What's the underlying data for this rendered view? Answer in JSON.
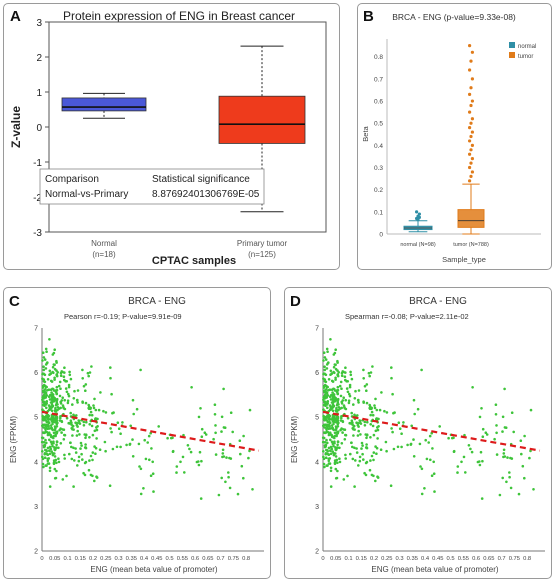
{
  "panels": {
    "A": "A",
    "B": "B",
    "C": "C",
    "D": "D"
  },
  "chart_data": [
    {
      "type": "box",
      "title": "Protein expression of ENG in Breast cancer",
      "xlabel": "CPTAC samples",
      "ylabel": "Z-value",
      "ylim": [
        -3,
        3
      ],
      "yticks": [
        "-3",
        "-2",
        "-1",
        "0",
        "1",
        "2",
        "3"
      ],
      "categories": [
        {
          "name": "Normal",
          "n": "(n=18)",
          "color": "#4a58d8",
          "whisker_low": 0.25,
          "q1": 0.46,
          "median": 0.57,
          "q3": 0.83,
          "whisker_high": 0.96
        },
        {
          "name": "Primary tumor",
          "n": "(n=125)",
          "color": "#ee3b1c",
          "whisker_low": -2.42,
          "q1": -0.47,
          "median": 0.08,
          "q3": 0.88,
          "whisker_high": 2.31
        }
      ],
      "table": {
        "header": [
          "Comparison",
          "Statistical significance"
        ],
        "row": [
          "Normal-vs-Primary",
          "8.87692401306769E-05"
        ]
      }
    },
    {
      "type": "box",
      "title": "BRCA - ENG (p-value=9.33e-08)",
      "xlabel": "Sample_type",
      "ylabel": "Beta",
      "ylim": [
        0,
        0.88
      ],
      "yticks": [
        "0",
        "0.1",
        "0.2",
        "0.3",
        "0.4",
        "0.5",
        "0.6",
        "0.7",
        "0.8"
      ],
      "legend": {
        "position": "top-right",
        "items": [
          {
            "label": "normal",
            "color": "#2f8fa6"
          },
          {
            "label": "tumor",
            "color": "#e07b1a"
          }
        ]
      },
      "categories": [
        {
          "name": "normal (N=98)",
          "color": "#2f8fa6",
          "whisker_low": 0.01,
          "q1": 0.02,
          "median": 0.027,
          "q3": 0.035,
          "whisker_high": 0.06,
          "outliers": [
            0.07,
            0.08,
            0.09,
            0.1,
            0.065,
            0.075
          ]
        },
        {
          "name": "tumor (N=788)",
          "color": "#e07b1a",
          "whisker_low": 0.0,
          "q1": 0.03,
          "median": 0.06,
          "q3": 0.11,
          "whisker_high": 0.225,
          "outliers": [
            0.24,
            0.26,
            0.28,
            0.3,
            0.32,
            0.34,
            0.36,
            0.38,
            0.4,
            0.42,
            0.44,
            0.46,
            0.48,
            0.5,
            0.52,
            0.55,
            0.58,
            0.6,
            0.63,
            0.66,
            0.7,
            0.74,
            0.78,
            0.82,
            0.85
          ]
        }
      ]
    },
    {
      "type": "scatter",
      "title": "BRCA - ENG",
      "annotation": "Pearson r=-0.19; P-value=9.91e-09",
      "xlabel": "ENG (mean beta value of promoter)",
      "ylabel": "ENG (FPKM)",
      "xlim": [
        0,
        0.87
      ],
      "ylim": [
        2,
        7
      ],
      "xticks": [
        "0",
        "0.05",
        "0.1",
        "0.15",
        "0.2",
        "0.25",
        "0.3",
        "0.35",
        "0.4",
        "0.45",
        "0.5",
        "0.55",
        "0.6",
        "0.65",
        "0.7",
        "0.75",
        "0.8"
      ],
      "yticks": [
        "2",
        "3",
        "4",
        "5",
        "6",
        "7"
      ],
      "point_color": "#3ec43a",
      "fit": {
        "color": "#dd1b1b",
        "x": [
          0,
          0.85
        ],
        "y": [
          5.12,
          4.25
        ]
      }
    },
    {
      "type": "scatter",
      "title": "BRCA - ENG",
      "annotation": "Spearman r=-0.08; P-value=2.11e-02",
      "xlabel": "ENG (mean beta value of promoter)",
      "ylabel": "ENG (FPKM)",
      "xlim": [
        0,
        0.87
      ],
      "ylim": [
        2,
        7
      ],
      "xticks": [
        "0",
        "0.05",
        "0.1",
        "0.15",
        "0.2",
        "0.25",
        "0.3",
        "0.35",
        "0.4",
        "0.45",
        "0.5",
        "0.55",
        "0.6",
        "0.65",
        "0.7",
        "0.75",
        "0.8"
      ],
      "yticks": [
        "2",
        "3",
        "4",
        "5",
        "6",
        "7"
      ],
      "point_color": "#3ec43a",
      "fit": {
        "color": "#dd1b1b",
        "x": [
          0,
          0.85
        ],
        "y": [
          5.12,
          4.25
        ]
      }
    }
  ]
}
